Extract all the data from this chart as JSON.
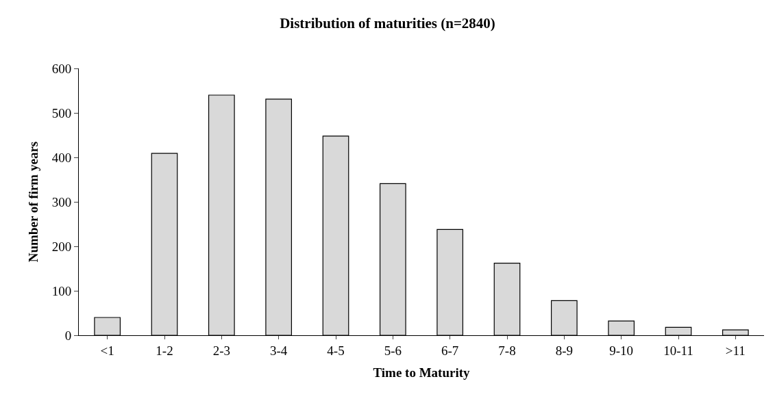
{
  "chart_data": {
    "type": "bar",
    "title": "Distribution of maturities (n=2840)",
    "xlabel": "Time to Maturity",
    "ylabel": "Number of firm years",
    "categories": [
      "<1",
      "1-2",
      "2-3",
      "3-4",
      "4-5",
      "5-6",
      "6-7",
      "7-8",
      "8-9",
      "9-10",
      "10-11",
      ">11"
    ],
    "values": [
      40,
      409,
      540,
      531,
      448,
      341,
      238,
      162,
      78,
      32,
      18,
      12
    ],
    "color": "#d9d9d9",
    "ylim": [
      0,
      600
    ],
    "yticks": [
      0,
      100,
      200,
      300,
      400,
      500,
      600
    ]
  }
}
